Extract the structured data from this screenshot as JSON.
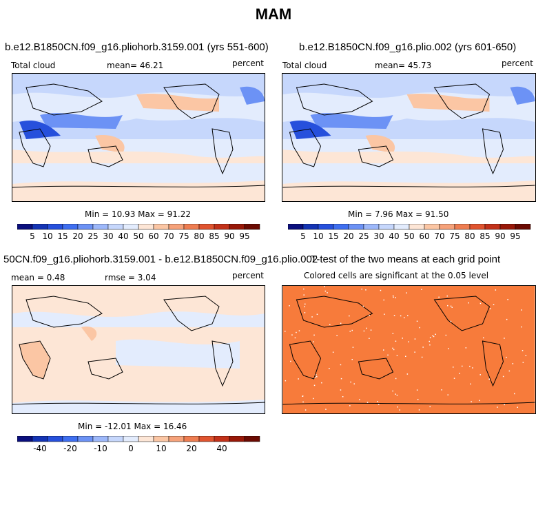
{
  "figure": {
    "title": "MAM"
  },
  "panels": [
    {
      "title": "b.e12.B1850CN.f09_g16.pliohorb.3159.001 (yrs 551-600)",
      "left_label": "Total cloud",
      "mid_label": "mean=  46.21",
      "right_label": "percent",
      "minmax": "Min =   10.93  Max =   91.22",
      "colorbar_labels": [
        "5",
        "10",
        "15",
        "20",
        "25",
        "30",
        "40",
        "50",
        "60",
        "70",
        "75",
        "80",
        "85",
        "90",
        "95"
      ]
    },
    {
      "title": "b.e12.B1850CN.f09_g16.plio.002 (yrs 601-650)",
      "left_label": "Total cloud",
      "mid_label": "mean=  45.73",
      "right_label": "percent",
      "minmax": "Min =    7.96  Max =   91.50",
      "colorbar_labels": [
        "5",
        "10",
        "15",
        "20",
        "25",
        "30",
        "40",
        "50",
        "60",
        "70",
        "75",
        "80",
        "85",
        "90",
        "95"
      ]
    },
    {
      "title": "50CN.f09_g16.pliohorb.3159.001 - b.e12.B1850CN.f09_g16.plio.002",
      "left_label": "mean =    0.48",
      "mid_label": "rmse =    3.04",
      "right_label": "percent",
      "minmax": "Min =  -12.01  Max =   16.46",
      "colorbar_labels": [
        "-40",
        "-20",
        "-10",
        "0",
        "10",
        "20",
        "40"
      ]
    },
    {
      "title": "T-test of the two means at each grid point",
      "subtitle": "Colored cells are significant at the 0.05 level"
    }
  ],
  "colors": {
    "colorbar": [
      "#0a0f7d",
      "#1434b4",
      "#2650dc",
      "#3f6ff0",
      "#6c92f5",
      "#9db8fa",
      "#c6d7fc",
      "#e3ecfd",
      "#fde6d6",
      "#fbc6a4",
      "#f6a27a",
      "#ee7d51",
      "#e0542f",
      "#c23119",
      "#981808",
      "#6b0a02"
    ],
    "ttest_fill": "#f77b3b",
    "land_outline": "#000000"
  }
}
